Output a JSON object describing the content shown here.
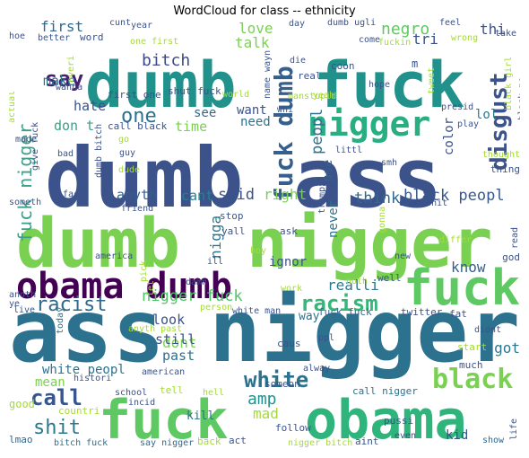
{
  "title": "WordCloud for class -- ethnicity",
  "chart_data": {
    "type": "wordcloud",
    "title": "WordCloud for class -- ethnicity",
    "words": [
      {
        "text": "dumb ass",
        "color": "#3b528b"
      },
      {
        "text": "dumb",
        "color": "#7ad151"
      },
      {
        "text": "nigger",
        "color": "#7ad151"
      },
      {
        "text": "ass",
        "color": "#2c728e"
      },
      {
        "text": "nigger",
        "color": "#2c728e"
      },
      {
        "text": "dumb",
        "color": "#21918c"
      },
      {
        "text": "fuck",
        "color": "#21918c"
      },
      {
        "text": "obama dumb",
        "color": "#440154"
      },
      {
        "text": "fuck",
        "color": "#5ec962"
      },
      {
        "text": "fuck",
        "color": "#5ec962"
      },
      {
        "text": "obama",
        "color": "#2fb47c"
      },
      {
        "text": "nigger",
        "color": "#28ae80"
      },
      {
        "text": "fuck dumb",
        "color": "#355f8d"
      },
      {
        "text": "disgust",
        "color": "#3b528b"
      },
      {
        "text": "racist",
        "color": "#31688e"
      },
      {
        "text": "racism",
        "color": "#35b779"
      },
      {
        "text": "black",
        "color": "#7ad151"
      },
      {
        "text": "white",
        "color": "#2c728e"
      },
      {
        "text": "nigger fuck",
        "color": "#52c569"
      },
      {
        "text": "fuck nigger",
        "color": "#3e9e89"
      },
      {
        "text": "call",
        "color": "#39568c"
      },
      {
        "text": "shit",
        "color": "#2a788e"
      },
      {
        "text": "one",
        "color": "#2c728e"
      },
      {
        "text": "say",
        "color": "#481f70"
      },
      {
        "text": "bitch",
        "color": "#3e4989"
      },
      {
        "text": "first",
        "color": "#31688e"
      },
      {
        "text": "negro",
        "color": "#5ec962"
      },
      {
        "text": "thi",
        "color": "#3b528b"
      },
      {
        "text": "black peopl",
        "color": "#38588c"
      },
      {
        "text": "think",
        "color": "#31688e"
      },
      {
        "text": "peopl",
        "color": "#2c728e"
      },
      {
        "text": "nigga",
        "color": "#2a788e"
      },
      {
        "text": "said",
        "color": "#3b528b"
      },
      {
        "text": "right",
        "color": "#7ad151"
      },
      {
        "text": "cant",
        "color": "#26818e"
      },
      {
        "text": "anyth",
        "color": "#355f8d"
      },
      {
        "text": "want",
        "color": "#3b528b"
      },
      {
        "text": "need",
        "color": "#2c728e"
      },
      {
        "text": "time",
        "color": "#7ad151"
      },
      {
        "text": "see",
        "color": "#31688e"
      },
      {
        "text": "love",
        "color": "#7ad151"
      },
      {
        "text": "talk",
        "color": "#7ad151"
      },
      {
        "text": "make",
        "color": "#2c728e"
      },
      {
        "text": "hate",
        "color": "#3b528b"
      },
      {
        "text": "don t",
        "color": "#3e9e89"
      },
      {
        "text": "lol",
        "color": "#2a788e"
      },
      {
        "text": "color",
        "color": "#3b528b"
      },
      {
        "text": "know",
        "color": "#355f8d"
      },
      {
        "text": "realli",
        "color": "#2a788e"
      },
      {
        "text": "ignor",
        "color": "#3b528b"
      },
      {
        "text": "never",
        "color": "#2c728e"
      },
      {
        "text": "use",
        "color": "#355f8d"
      },
      {
        "text": "look",
        "color": "#3b528b"
      },
      {
        "text": "dont",
        "color": "#7ad151"
      },
      {
        "text": "still",
        "color": "#3b528b"
      },
      {
        "text": "past",
        "color": "#2c728e"
      },
      {
        "text": "amp",
        "color": "#21918c"
      },
      {
        "text": "mad",
        "color": "#a5db36"
      },
      {
        "text": "white peopl",
        "color": "#2c728e"
      },
      {
        "text": "mean",
        "color": "#7ad151"
      },
      {
        "text": "got",
        "color": "#2a788e"
      },
      {
        "text": "tri",
        "color": "#3b528b"
      },
      {
        "text": "fuck fuck",
        "color": "#31688e"
      },
      {
        "text": "call nigger",
        "color": "#2c728e"
      },
      {
        "text": "nigger bitch",
        "color": "#a5db36"
      },
      {
        "text": "bitch fuck",
        "color": "#2c728e"
      },
      {
        "text": "say nigger",
        "color": "#31688e"
      },
      {
        "text": "kid",
        "color": "#3b528b"
      },
      {
        "text": "aint",
        "color": "#3b528b"
      },
      {
        "text": "even",
        "color": "#3b528b"
      },
      {
        "text": "show",
        "color": "#31688e"
      },
      {
        "text": "life",
        "color": "#3b528b"
      },
      {
        "text": "lmao",
        "color": "#31688e"
      },
      {
        "text": "back",
        "color": "#a5db36"
      },
      {
        "text": "act",
        "color": "#3b528b"
      },
      {
        "text": "kill",
        "color": "#2c728e"
      },
      {
        "text": "good",
        "color": "#a5db36"
      },
      {
        "text": "countri",
        "color": "#a5db36"
      },
      {
        "text": "incid",
        "color": "#3b528b"
      },
      {
        "text": "school",
        "color": "#3b528b"
      },
      {
        "text": "american",
        "color": "#3b528b"
      },
      {
        "text": "tell",
        "color": "#a5db36"
      },
      {
        "text": "hell",
        "color": "#a5db36"
      },
      {
        "text": "someon",
        "color": "#3b528b"
      },
      {
        "text": "follow",
        "color": "#3b528b"
      },
      {
        "text": "pussi",
        "color": "#3b528b"
      },
      {
        "text": "much",
        "color": "#3b528b"
      },
      {
        "text": "start",
        "color": "#a5db36"
      },
      {
        "text": "didnt",
        "color": "#3b528b"
      },
      {
        "text": "fat",
        "color": "#3b528b"
      },
      {
        "text": "twitter",
        "color": "#3b528b"
      },
      {
        "text": "way",
        "color": "#2c728e"
      },
      {
        "text": "caus",
        "color": "#3b528b"
      },
      {
        "text": "ppl",
        "color": "#3b528b"
      },
      {
        "text": "alway",
        "color": "#3b528b"
      },
      {
        "text": "white man",
        "color": "#3b528b"
      },
      {
        "text": "person",
        "color": "#a5db36"
      },
      {
        "text": "anyth past",
        "color": "#a5db36"
      },
      {
        "text": "today",
        "color": "#2c728e"
      },
      {
        "text": "histori",
        "color": "#3b528b"
      },
      {
        "text": "anoth",
        "color": "#3b528b"
      },
      {
        "text": "ye",
        "color": "#3b528b"
      },
      {
        "text": "live",
        "color": "#3b528b"
      },
      {
        "text": "damn",
        "color": "#3b528b"
      },
      {
        "text": "america",
        "color": "#3b528b"
      },
      {
        "text": "pick",
        "color": "#a5db36"
      },
      {
        "text": "let",
        "color": "#a5db36"
      },
      {
        "text": "ill",
        "color": "#3b528b"
      },
      {
        "text": "work",
        "color": "#a5db36"
      },
      {
        "text": "new",
        "color": "#3b528b"
      },
      {
        "text": "well",
        "color": "#3b528b"
      },
      {
        "text": "noth",
        "color": "#a5db36"
      },
      {
        "text": "god",
        "color": "#3b528b"
      },
      {
        "text": "read",
        "color": "#3b528b"
      },
      {
        "text": "differ",
        "color": "#a5db36"
      },
      {
        "text": "ask",
        "color": "#3b528b"
      },
      {
        "text": "boy",
        "color": "#a5db36"
      },
      {
        "text": "yall",
        "color": "#3b528b"
      },
      {
        "text": "stop",
        "color": "#3b528b"
      },
      {
        "text": "friend",
        "color": "#3b528b"
      },
      {
        "text": "keep",
        "color": "#3b528b"
      },
      {
        "text": "trump",
        "color": "#3b528b"
      },
      {
        "text": "dumb shit",
        "color": "#3b528b"
      },
      {
        "text": "smh",
        "color": "#3b528b"
      },
      {
        "text": "littl",
        "color": "#3b528b"
      },
      {
        "text": "thing",
        "color": "#3b528b"
      },
      {
        "text": "thought",
        "color": "#a5db36"
      },
      {
        "text": "play",
        "color": "#3b528b"
      },
      {
        "text": "presid",
        "color": "#3b528b"
      },
      {
        "text": "tweet",
        "color": "#a5db36"
      },
      {
        "text": "hope",
        "color": "#3b528b"
      },
      {
        "text": "coon",
        "color": "#3b528b"
      },
      {
        "text": "m",
        "color": "#3b528b"
      },
      {
        "text": "wrong",
        "color": "#a5db36"
      },
      {
        "text": "take",
        "color": "#3b528b"
      },
      {
        "text": "feel",
        "color": "#3b528b"
      },
      {
        "text": "dumb ugli",
        "color": "#3b528b"
      },
      {
        "text": "day",
        "color": "#3b528b"
      },
      {
        "text": "come",
        "color": "#3b528b"
      },
      {
        "text": "fuckin",
        "color": "#a5db36"
      },
      {
        "text": "die",
        "color": "#3b528b"
      },
      {
        "text": "real",
        "color": "#3b528b"
      },
      {
        "text": "manstupid",
        "color": "#a5db36"
      },
      {
        "text": "yeah",
        "color": "#a5db36"
      },
      {
        "text": "whi",
        "color": "#3b528b"
      },
      {
        "text": "name wayn",
        "color": "#3b528b"
      },
      {
        "text": "world",
        "color": "#a5db36"
      },
      {
        "text": "shut fuck",
        "color": "#3b528b"
      },
      {
        "text": "first one",
        "color": "#3b528b"
      },
      {
        "text": "call black",
        "color": "#3b528b"
      },
      {
        "text": "go",
        "color": "#a5db36"
      },
      {
        "text": "guy",
        "color": "#3b528b"
      },
      {
        "text": "dumb bitch",
        "color": "#3b528b"
      },
      {
        "text": "dude",
        "color": "#a5db36"
      },
      {
        "text": "one first",
        "color": "#a5db36"
      },
      {
        "text": "year",
        "color": "#3b528b"
      },
      {
        "text": "cunt",
        "color": "#3b528b"
      },
      {
        "text": "hoe",
        "color": "#3b528b"
      },
      {
        "text": "better",
        "color": "#3b528b"
      },
      {
        "text": "word",
        "color": "#3b528b"
      },
      {
        "text": "wanna",
        "color": "#3b528b"
      },
      {
        "text": "actual",
        "color": "#a5db36"
      },
      {
        "text": "made",
        "color": "#3b528b"
      },
      {
        "text": "bad",
        "color": "#3b528b"
      },
      {
        "text": "give fuck",
        "color": "#3b528b"
      },
      {
        "text": "someth",
        "color": "#3b528b"
      },
      {
        "text": "face",
        "color": "#3b528b"
      },
      {
        "text": "everi",
        "color": "#a5db36"
      },
      {
        "text": "black girl",
        "color": "#a5db36"
      },
      {
        "text": "black pe",
        "color": "#3b528b"
      },
      {
        "text": "gonna",
        "color": "#a5db36"
      }
    ]
  }
}
